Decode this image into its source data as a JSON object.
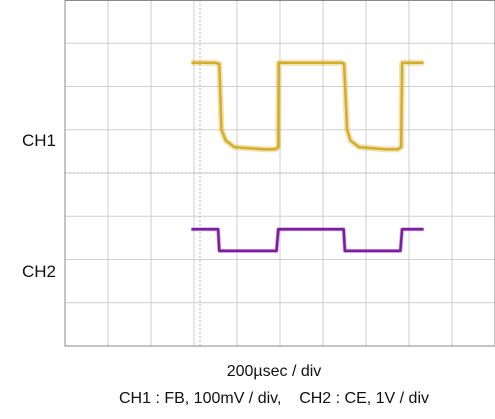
{
  "chart_data": {
    "type": "line",
    "title": "",
    "timebase": "200µsec / div",
    "caption": "CH1 : FB, 100mV / div,    CH2 : CE, 1V / div",
    "grid": true,
    "divisions": {
      "x": 10,
      "y": 8
    },
    "series": [
      {
        "name": "CH1",
        "label": "CH1",
        "color": "#d4ae2a",
        "scale": "100mV / div",
        "points": [
          [
            -0.2,
            2.55
          ],
          [
            0.35,
            2.55
          ],
          [
            0.45,
            2.52
          ],
          [
            0.5,
            1.0
          ],
          [
            0.6,
            0.75
          ],
          [
            0.8,
            0.6
          ],
          [
            1.0,
            0.58
          ],
          [
            1.5,
            0.55
          ],
          [
            1.75,
            0.55
          ],
          [
            1.82,
            0.6
          ],
          [
            1.83,
            2.55
          ],
          [
            3.3,
            2.55
          ],
          [
            3.35,
            2.52
          ],
          [
            3.42,
            1.0
          ],
          [
            3.5,
            0.75
          ],
          [
            3.7,
            0.6
          ],
          [
            3.9,
            0.58
          ],
          [
            4.3,
            0.55
          ],
          [
            4.6,
            0.55
          ],
          [
            4.68,
            0.6
          ],
          [
            4.7,
            2.55
          ],
          [
            5.2,
            2.55
          ]
        ]
      },
      {
        "name": "CH2",
        "label": "CH2",
        "color": "#7a1d9e",
        "scale": "1V / div",
        "points": [
          [
            -0.2,
            -1.3
          ],
          [
            0.42,
            -1.3
          ],
          [
            0.45,
            -1.8
          ],
          [
            1.78,
            -1.8
          ],
          [
            1.82,
            -1.3
          ],
          [
            3.34,
            -1.3
          ],
          [
            3.37,
            -1.8
          ],
          [
            4.66,
            -1.8
          ],
          [
            4.7,
            -1.3
          ],
          [
            5.2,
            -1.3
          ]
        ]
      }
    ]
  },
  "colors": {
    "background": "#ffffff",
    "grid": "#cfcfcf",
    "border": "#8a8a8a"
  }
}
